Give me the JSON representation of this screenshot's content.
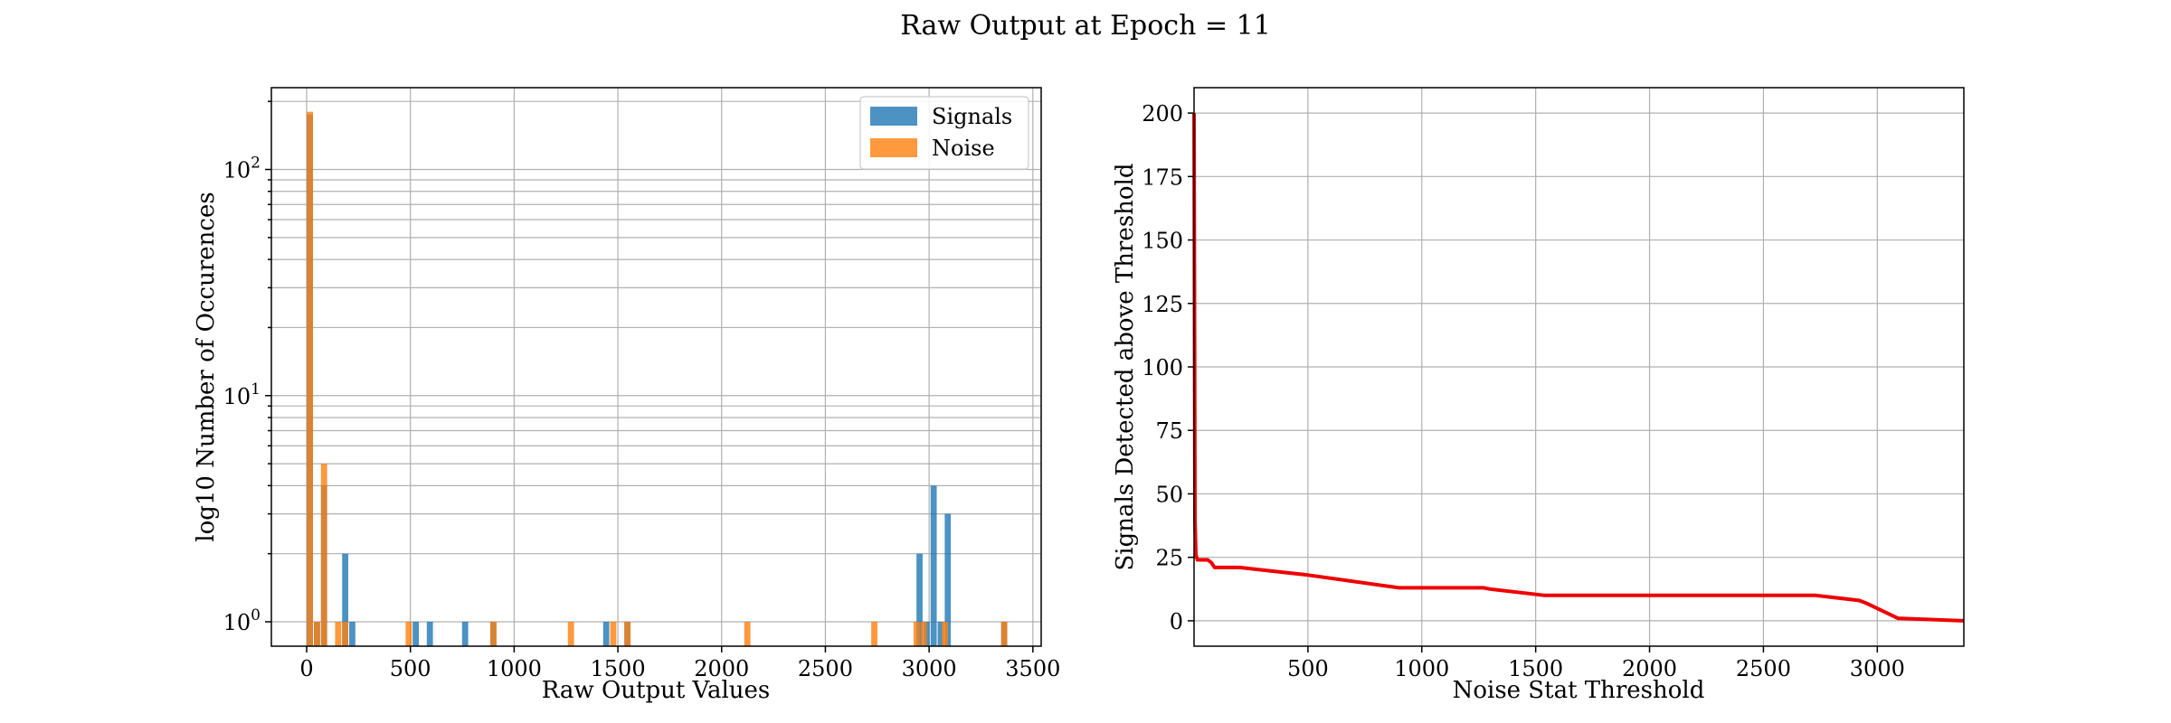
{
  "title": "Raw Output at Epoch = 11",
  "colors": {
    "signals": "#1f77b4",
    "noise": "#ff7f0e",
    "curve": "#ee0000"
  },
  "chart_data": [
    {
      "type": "bar",
      "subtype": "histogram",
      "xlabel": "Raw Output Values",
      "ylabel": "log10 Number of Occurences",
      "xlim": [
        -170,
        3540
      ],
      "ylim": [
        0.78,
        230
      ],
      "yscale": "log",
      "grid": true,
      "legend_position": "top-right",
      "bin_width": 34,
      "xticks": [
        "0",
        "500",
        "1000",
        "1500",
        "2000",
        "2500",
        "3000",
        "3500"
      ],
      "yticks": [
        {
          "value": 1,
          "base": "10",
          "exp": "0"
        },
        {
          "value": 10,
          "base": "10",
          "exp": "1"
        },
        {
          "value": 100,
          "base": "10",
          "exp": "2"
        }
      ],
      "series": [
        {
          "name": "Signals",
          "bins": [
            {
              "x": 18,
              "count": 175
            },
            {
              "x": 52,
              "count": 1
            },
            {
              "x": 86,
              "count": 4
            },
            {
              "x": 188,
              "count": 2
            },
            {
              "x": 222,
              "count": 1
            },
            {
              "x": 528,
              "count": 1
            },
            {
              "x": 596,
              "count": 1
            },
            {
              "x": 766,
              "count": 1
            },
            {
              "x": 902,
              "count": 1
            },
            {
              "x": 1446,
              "count": 1
            },
            {
              "x": 1548,
              "count": 1
            },
            {
              "x": 2956,
              "count": 2
            },
            {
              "x": 2990,
              "count": 1
            },
            {
              "x": 3024,
              "count": 4
            },
            {
              "x": 3058,
              "count": 1
            },
            {
              "x": 3092,
              "count": 3
            },
            {
              "x": 3364,
              "count": 1
            }
          ]
        },
        {
          "name": "Noise",
          "bins": [
            {
              "x": 18,
              "count": 180
            },
            {
              "x": 52,
              "count": 1
            },
            {
              "x": 86,
              "count": 5
            },
            {
              "x": 154,
              "count": 1
            },
            {
              "x": 188,
              "count": 1
            },
            {
              "x": 494,
              "count": 1
            },
            {
              "x": 902,
              "count": 1
            },
            {
              "x": 1276,
              "count": 1
            },
            {
              "x": 1480,
              "count": 1
            },
            {
              "x": 1548,
              "count": 1
            },
            {
              "x": 2126,
              "count": 1
            },
            {
              "x": 2738,
              "count": 1
            },
            {
              "x": 2942,
              "count": 1
            },
            {
              "x": 2976,
              "count": 1
            },
            {
              "x": 3078,
              "count": 1
            },
            {
              "x": 3364,
              "count": 1
            }
          ]
        }
      ]
    },
    {
      "type": "line",
      "xlabel": "Noise Stat Threshold",
      "ylabel": "Signals Detected above Threshold",
      "xlim": [
        0,
        3380
      ],
      "ylim": [
        -10,
        210
      ],
      "grid": true,
      "xticks": [
        500,
        1000,
        1500,
        2000,
        2500,
        3000
      ],
      "yticks": [
        0,
        25,
        50,
        75,
        100,
        125,
        150,
        175,
        200
      ],
      "series": [
        {
          "x": [
            0,
            4,
            8,
            15,
            40,
            60,
            75,
            90,
            150,
            200,
            500,
            900,
            1000,
            1270,
            1300,
            1540,
            1600,
            2000,
            2700,
            2730,
            2920,
            2950,
            3090,
            3380
          ],
          "y": [
            200,
            40,
            26,
            24,
            24,
            24,
            23,
            21,
            21,
            21,
            18,
            13,
            13,
            13,
            12.5,
            10,
            10,
            10,
            10,
            10,
            8,
            7,
            1,
            0
          ]
        }
      ]
    }
  ]
}
